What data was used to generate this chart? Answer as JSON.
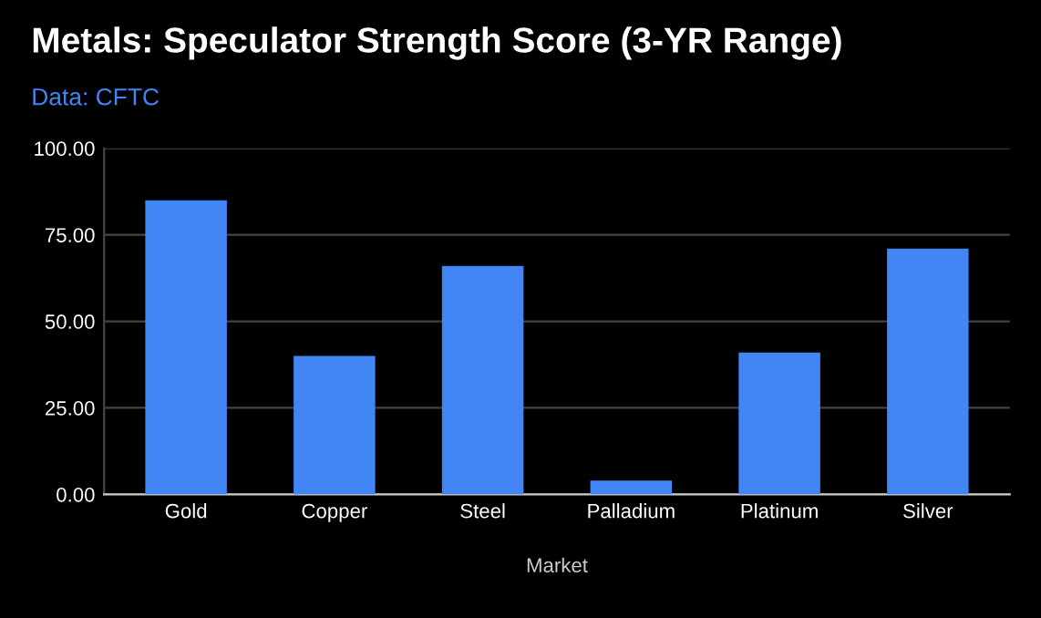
{
  "chart_data": {
    "type": "bar",
    "title": "Metals: Speculator Strength Score (3-YR Range)",
    "subtitle": "Data: CFTC",
    "xlabel": "Market",
    "categories": [
      "Gold",
      "Copper",
      "Steel",
      "Palladium",
      "Platinum",
      "Silver"
    ],
    "values": [
      85,
      40,
      66,
      4,
      41,
      71
    ],
    "color": "#4285f4",
    "ylim": [
      0,
      100
    ],
    "yticks": [
      {
        "value": 0,
        "label": "0.00"
      },
      {
        "value": 25,
        "label": "25.00"
      },
      {
        "value": 50,
        "label": "50.00"
      },
      {
        "value": 75,
        "label": "75.00"
      },
      {
        "value": 100,
        "label": "100.00"
      }
    ],
    "grid": "y",
    "legend": false
  }
}
